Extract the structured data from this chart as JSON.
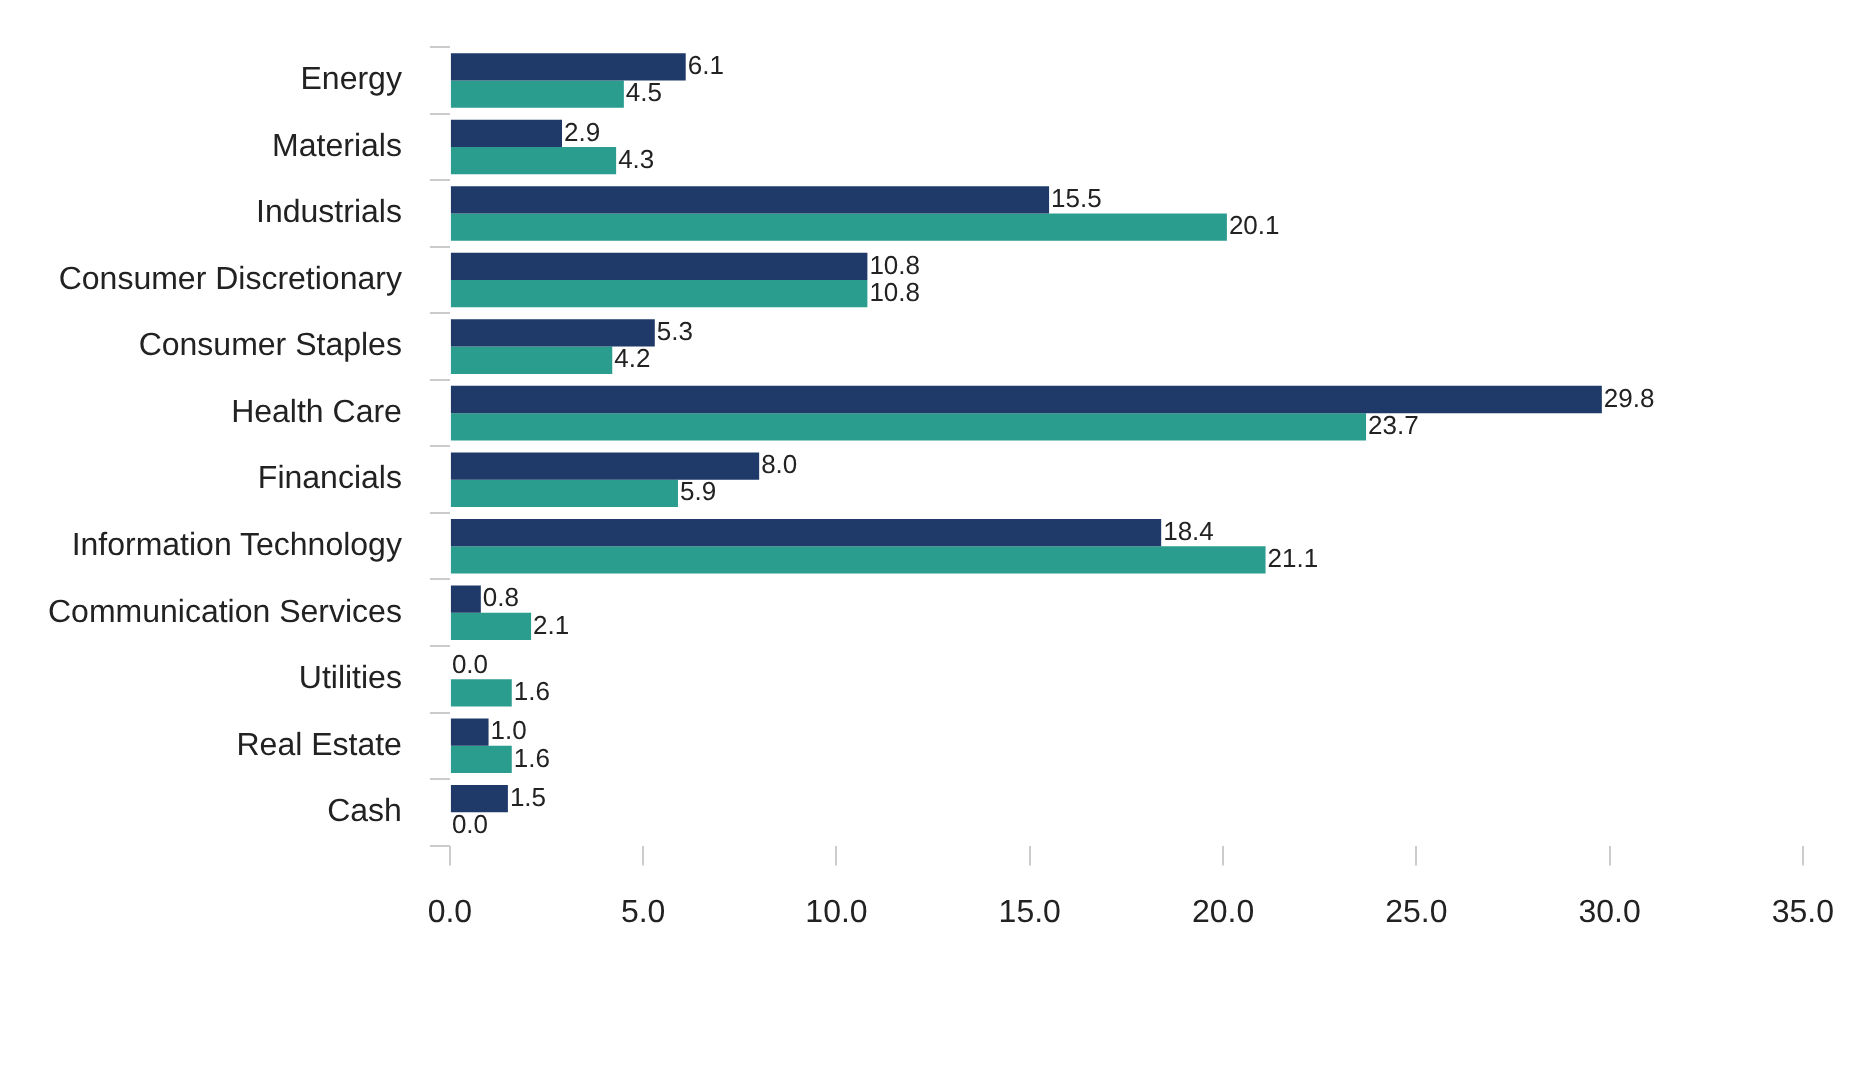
{
  "chart_data": {
    "type": "bar",
    "orientation": "horizontal",
    "categories": [
      "Energy",
      "Materials",
      "Industrials",
      "Consumer Discretionary",
      "Consumer Staples",
      "Health Care",
      "Financials",
      "Information Technology",
      "Communication Services",
      "Utilities",
      "Real Estate",
      "Cash"
    ],
    "series": [
      {
        "color": "#1f3a68",
        "values": [
          6.1,
          2.9,
          15.5,
          10.8,
          5.3,
          29.8,
          8.0,
          18.4,
          0.8,
          0.0,
          1.0,
          1.5
        ],
        "value_labels": [
          "6.1",
          "2.9",
          "15.5",
          "10.8",
          "5.3",
          "29.8",
          "8.0",
          "18.4",
          "0.8",
          "0.0",
          "1.0",
          "1.5"
        ]
      },
      {
        "color": "#2a9d8f",
        "values": [
          4.5,
          4.3,
          20.1,
          10.8,
          4.2,
          23.7,
          5.9,
          21.1,
          2.1,
          1.6,
          1.6,
          0.0
        ],
        "value_labels": [
          "4.5",
          "4.3",
          "20.1",
          "10.8",
          "4.2",
          "23.7",
          "5.9",
          "21.1",
          "2.1",
          "1.6",
          "1.6",
          "0.0"
        ]
      }
    ],
    "xlim": [
      0,
      35
    ],
    "xticks": [
      {
        "value": 0,
        "label": "0.0"
      },
      {
        "value": 5,
        "label": "5.0"
      },
      {
        "value": 10,
        "label": "10.0"
      },
      {
        "value": 15,
        "label": "15.0"
      },
      {
        "value": 20,
        "label": "20.0"
      },
      {
        "value": 25,
        "label": "25.0"
      },
      {
        "value": 30,
        "label": "30.0"
      },
      {
        "value": 35,
        "label": "35.0"
      }
    ],
    "grid": false,
    "legend": false
  }
}
